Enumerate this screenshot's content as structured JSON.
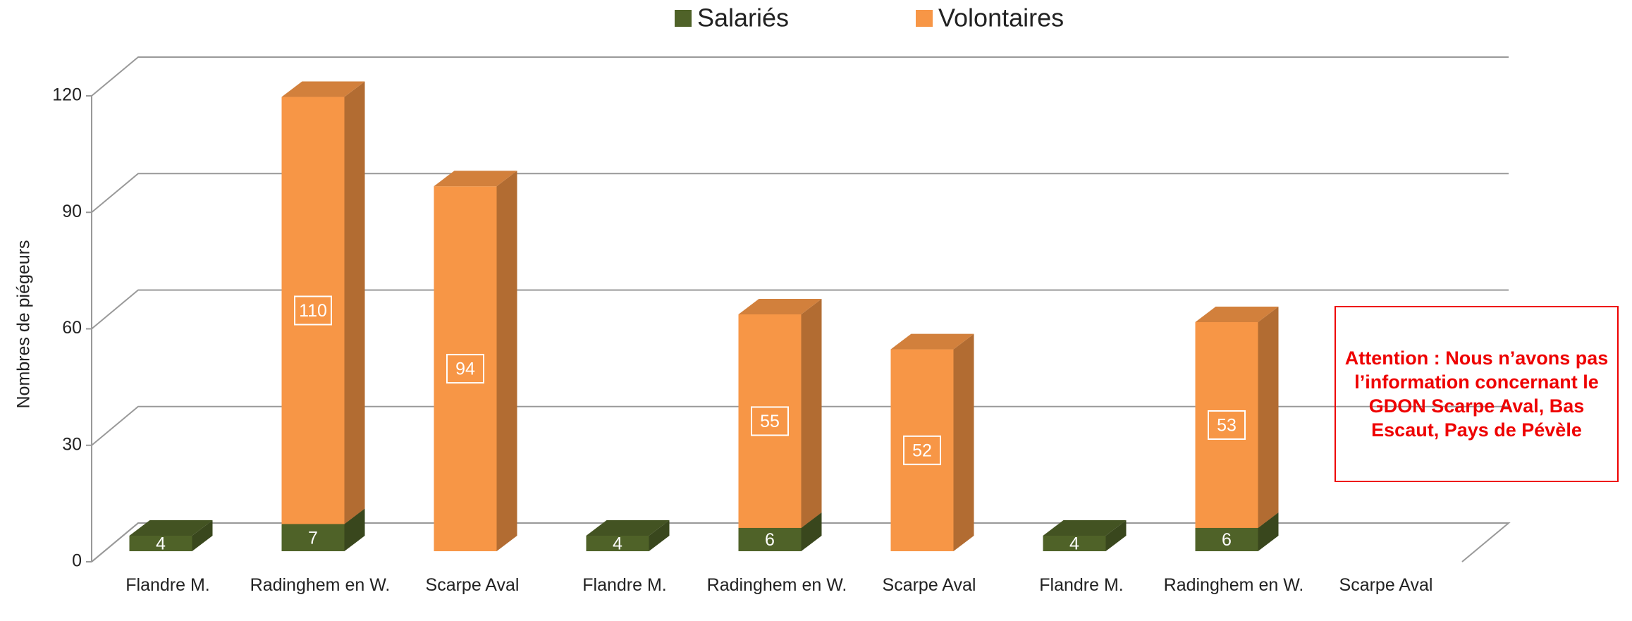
{
  "chart_data": {
    "type": "bar3d_stacked",
    "y_label": "Nombres de piégeurs",
    "categories": [
      "Flandre M.",
      "Radinghem en W.",
      "Scarpe Aval",
      "Flandre M.",
      "Radinghem en W.",
      "Scarpe Aval",
      "Flandre M.",
      "Radinghem en W.",
      "Scarpe Aval"
    ],
    "series": [
      {
        "name": "Salariés",
        "color": "#4f6228",
        "values": [
          4,
          7,
          null,
          4,
          6,
          null,
          4,
          6,
          null
        ]
      },
      {
        "name": "Volontaires",
        "color": "#f79646",
        "values": [
          null,
          110,
          94,
          null,
          55,
          52,
          null,
          53,
          null
        ]
      }
    ],
    "ylim": [
      0,
      120
    ],
    "yticks": [
      0,
      30,
      60,
      90,
      120
    ],
    "grid": true,
    "legend": "top",
    "annotation": "Attention : Nous n’avons pas l’information concernant le GDON Scarpe Aval, Bas Escaut, Pays de Pévèle"
  }
}
